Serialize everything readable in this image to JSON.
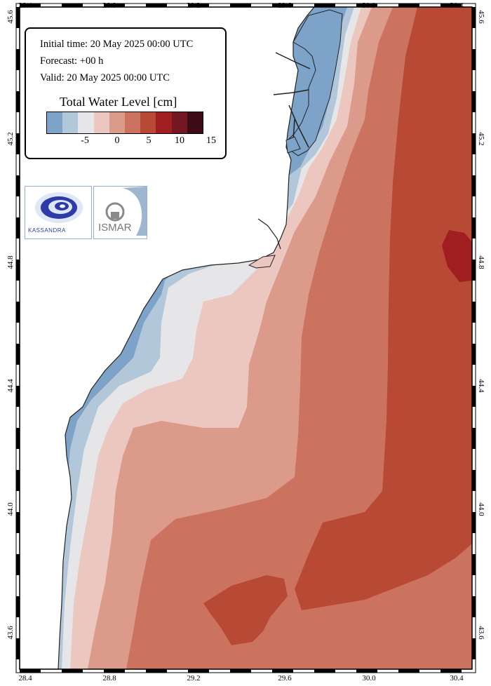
{
  "info": {
    "initial_time": "Initial time: 20 May 2025 00:00 UTC",
    "forecast": "Forecast: +00 h",
    "valid": "Valid: 20 May 2025 00:00 UTC"
  },
  "legend": {
    "title": "Total Water Level [cm]",
    "colors": [
      "#7da3c9",
      "#b3c7da",
      "#e6e6e8",
      "#ecc7c0",
      "#dc9a8b",
      "#cc7360",
      "#b84a35",
      "#a01d20",
      "#731722",
      "#3d0c17"
    ],
    "tick_labels": [
      "-5",
      "0",
      "5",
      "10",
      "15"
    ]
  },
  "axes": {
    "x_ticks": [
      "28.4",
      "28.8",
      "29.2",
      "29.6",
      "30.0",
      "30.4"
    ],
    "y_ticks": [
      "45.6",
      "45.2",
      "44.8",
      "44.4",
      "44.0",
      "43.6"
    ]
  },
  "logos": {
    "kassandra": "KASSANDRA",
    "ismar": "ISMAR"
  }
}
